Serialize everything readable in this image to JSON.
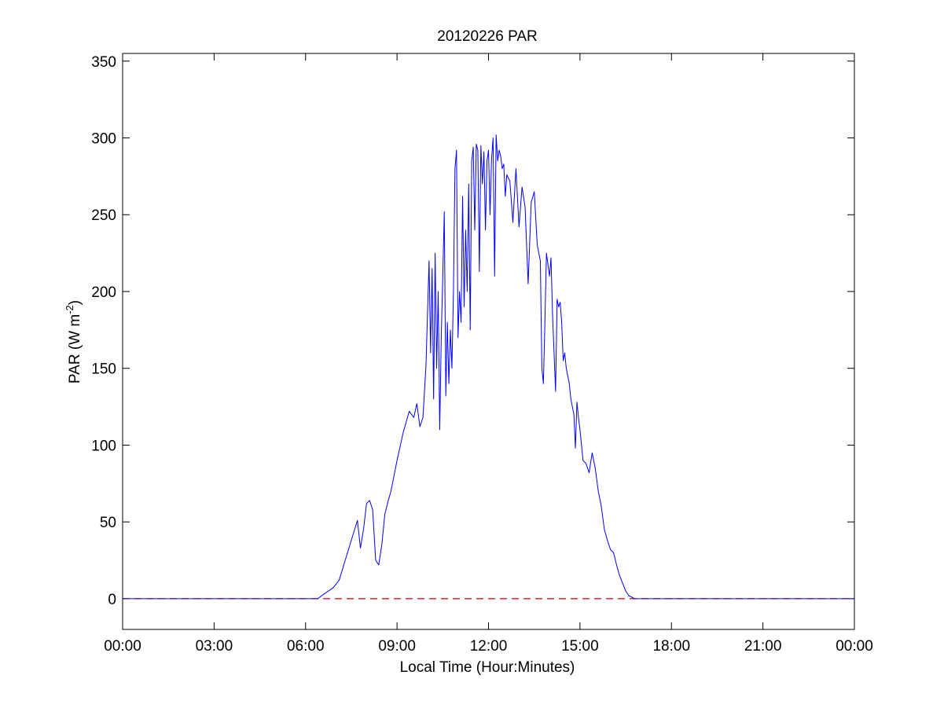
{
  "chart_data": {
    "type": "line",
    "title": "20120226 PAR",
    "xlabel": "Local Time (Hour:Minutes)",
    "ylabel": {
      "prefix": "PAR (W m",
      "superscript": "-2",
      "suffix": ")"
    },
    "xlim": [
      0,
      24
    ],
    "ylim": [
      -20,
      355
    ],
    "x_ticks": [
      {
        "value": 0,
        "label": "00:00"
      },
      {
        "value": 3,
        "label": "03:00"
      },
      {
        "value": 6,
        "label": "06:00"
      },
      {
        "value": 9,
        "label": "09:00"
      },
      {
        "value": 12,
        "label": "12:00"
      },
      {
        "value": 15,
        "label": "15:00"
      },
      {
        "value": 18,
        "label": "18:00"
      },
      {
        "value": 21,
        "label": "21:00"
      },
      {
        "value": 24,
        "label": "00:00"
      }
    ],
    "y_ticks": [
      0,
      50,
      100,
      150,
      200,
      250,
      300,
      350
    ],
    "grid": false,
    "legend": "none",
    "colors": {
      "series": "#0000ff",
      "reference": "#cc0000",
      "axes": "#000000"
    },
    "reference_line": {
      "y": 0,
      "style": "dashed"
    },
    "series": [
      {
        "color": "#0000ff",
        "x": [
          0,
          6.4,
          6.6,
          6.9,
          7.1,
          7.3,
          7.5,
          7.7,
          7.8,
          7.9,
          8.0,
          8.1,
          8.2,
          8.3,
          8.4,
          8.5,
          8.6,
          8.7,
          8.8,
          9.0,
          9.2,
          9.4,
          9.55,
          9.65,
          9.75,
          9.85,
          9.95,
          10.05,
          10.1,
          10.15,
          10.2,
          10.25,
          10.3,
          10.35,
          10.4,
          10.45,
          10.5,
          10.55,
          10.6,
          10.65,
          10.7,
          10.75,
          10.8,
          10.85,
          10.9,
          10.95,
          11.0,
          11.05,
          11.1,
          11.15,
          11.2,
          11.25,
          11.3,
          11.35,
          11.4,
          11.45,
          11.5,
          11.55,
          11.6,
          11.65,
          11.7,
          11.75,
          11.8,
          11.85,
          11.9,
          11.95,
          12.0,
          12.05,
          12.1,
          12.15,
          12.2,
          12.25,
          12.3,
          12.35,
          12.4,
          12.45,
          12.5,
          12.55,
          12.6,
          12.7,
          12.8,
          12.9,
          13.0,
          13.1,
          13.2,
          13.3,
          13.4,
          13.5,
          13.6,
          13.7,
          13.75,
          13.8,
          13.85,
          13.9,
          14.0,
          14.05,
          14.1,
          14.15,
          14.2,
          14.25,
          14.3,
          14.35,
          14.4,
          14.45,
          14.5,
          14.55,
          14.6,
          14.65,
          14.7,
          14.75,
          14.8,
          14.85,
          14.9,
          14.95,
          15.0,
          15.1,
          15.2,
          15.3,
          15.4,
          15.5,
          15.6,
          15.7,
          15.8,
          15.9,
          16.0,
          16.1,
          16.2,
          16.3,
          16.4,
          16.5,
          16.6,
          16.8,
          17.0,
          17.2,
          17.4,
          17.6,
          17.8,
          17.95,
          18.1,
          24
        ],
        "y": [
          0,
          0,
          3,
          7,
          12,
          25,
          38,
          51,
          33,
          45,
          62,
          64,
          58,
          25,
          22,
          35,
          55,
          63,
          70,
          90,
          108,
          122,
          118,
          127,
          112,
          118,
          152,
          220,
          160,
          215,
          130,
          225,
          150,
          200,
          110,
          170,
          210,
          252,
          132,
          180,
          140,
          175,
          150,
          200,
          280,
          292,
          170,
          200,
          180,
          262,
          190,
          240,
          200,
          270,
          175,
          285,
          294,
          240,
          296,
          292,
          213,
          295,
          270,
          291,
          240,
          285,
          292,
          250,
          286,
          300,
          210,
          302,
          285,
          292,
          288,
          280,
          283,
          262,
          276,
          272,
          245,
          280,
          242,
          268,
          255,
          205,
          258,
          265,
          230,
          220,
          150,
          140,
          180,
          225,
          210,
          222,
          185,
          160,
          135,
          195,
          190,
          193,
          180,
          155,
          160,
          150,
          145,
          140,
          130,
          125,
          120,
          98,
          128,
          118,
          110,
          90,
          88,
          82,
          95,
          85,
          70,
          60,
          45,
          38,
          32,
          30,
          22,
          15,
          10,
          5,
          2,
          0,
          0,
          0,
          0,
          0,
          0,
          0,
          0,
          0
        ]
      }
    ]
  }
}
